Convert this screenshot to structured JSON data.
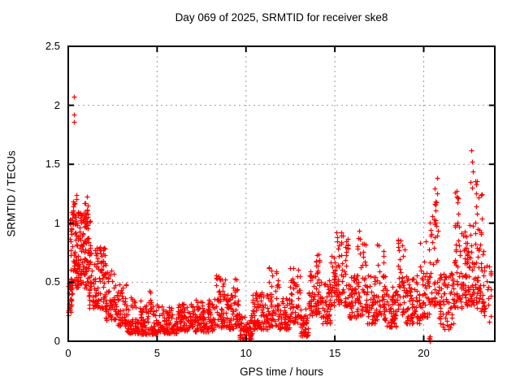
{
  "chart_data": {
    "type": "scatter",
    "title": "Day 069 of 2025, SRMTID for receiver ske8",
    "xlabel": "GPS time / hours",
    "ylabel": "SRMTID / TECUs",
    "xlim": [
      0,
      24
    ],
    "ylim": [
      0,
      2.5
    ],
    "xticks": [
      0,
      5,
      10,
      15,
      20
    ],
    "yticks": [
      0,
      0.5,
      1,
      1.5,
      2,
      2.5
    ],
    "grid": true,
    "legend": "none",
    "marker": "plus",
    "marker_color": "#ff0000",
    "grid_color": "#9a9a9a",
    "border_color": "#000000",
    "point_clusters": [
      [
        0.0,
        0.18,
        25,
        0.18,
        0.55,
        1.0
      ],
      [
        0.05,
        0.4,
        40,
        0.4,
        1.05,
        1.2
      ],
      [
        0.15,
        0.5,
        12,
        1.05,
        1.27,
        1.0
      ],
      [
        0.3,
        1.25,
        150,
        0.45,
        1.1,
        1.25
      ],
      [
        0.85,
        1.2,
        14,
        1.0,
        1.25,
        1.0
      ],
      [
        1.15,
        1.65,
        55,
        0.28,
        0.8,
        1.4
      ],
      [
        1.6,
        2.15,
        50,
        0.28,
        0.8,
        1.6
      ],
      [
        1.82,
        1.98,
        8,
        0.6,
        0.8,
        1.0
      ],
      [
        2.1,
        2.65,
        50,
        0.18,
        0.6,
        1.5
      ],
      [
        2.65,
        3.25,
        50,
        0.13,
        0.5,
        1.7
      ],
      [
        3.25,
        4.1,
        70,
        0.07,
        0.38,
        1.9
      ],
      [
        4.1,
        5.05,
        90,
        0.06,
        0.32,
        1.9
      ],
      [
        4.5,
        4.72,
        8,
        0.25,
        0.45,
        1.0
      ],
      [
        5.05,
        6.1,
        90,
        0.07,
        0.3,
        1.7
      ],
      [
        6.1,
        7.1,
        90,
        0.09,
        0.33,
        1.6
      ],
      [
        7.1,
        8.25,
        105,
        0.08,
        0.36,
        1.6
      ],
      [
        8.25,
        8.85,
        55,
        0.12,
        0.56,
        1.5
      ],
      [
        8.85,
        9.3,
        45,
        0.1,
        0.4,
        1.5
      ],
      [
        9.3,
        9.62,
        28,
        0.12,
        0.58,
        1.3
      ],
      [
        9.62,
        10.35,
        65,
        0.02,
        0.22,
        1.4
      ],
      [
        10.35,
        11.2,
        80,
        0.1,
        0.42,
        1.6
      ],
      [
        11.2,
        11.85,
        55,
        0.13,
        0.64,
        1.5
      ],
      [
        11.85,
        12.45,
        50,
        0.1,
        0.37,
        1.5
      ],
      [
        12.45,
        13.05,
        52,
        0.16,
        0.63,
        1.4
      ],
      [
        13.05,
        13.5,
        42,
        0.04,
        0.28,
        1.3
      ],
      [
        13.5,
        14.15,
        58,
        0.22,
        0.62,
        1.3
      ],
      [
        13.92,
        14.15,
        10,
        0.6,
        0.81,
        1.0
      ],
      [
        14.15,
        14.75,
        52,
        0.15,
        0.52,
        1.5
      ],
      [
        14.75,
        15.05,
        28,
        0.28,
        0.75,
        1.2
      ],
      [
        15.05,
        15.75,
        70,
        0.3,
        0.93,
        1.4
      ],
      [
        15.75,
        16.25,
        45,
        0.2,
        0.56,
        1.5
      ],
      [
        16.25,
        16.75,
        48,
        0.22,
        0.95,
        1.6
      ],
      [
        16.75,
        17.35,
        52,
        0.15,
        0.56,
        1.5
      ],
      [
        17.35,
        17.85,
        45,
        0.18,
        0.82,
        1.8
      ],
      [
        17.85,
        18.55,
        62,
        0.12,
        0.46,
        1.5
      ],
      [
        18.55,
        18.95,
        38,
        0.22,
        0.92,
        1.5
      ],
      [
        18.95,
        19.75,
        68,
        0.15,
        0.56,
        1.5
      ],
      [
        19.75,
        20.35,
        52,
        0.2,
        0.86,
        1.7
      ],
      [
        20.35,
        20.85,
        40,
        0.3,
        1.05,
        1.6
      ],
      [
        20.5,
        20.8,
        12,
        0.98,
        1.47,
        1.0
      ],
      [
        20.85,
        21.65,
        65,
        0.1,
        0.6,
        1.5
      ],
      [
        21.65,
        22.15,
        45,
        0.28,
        1.05,
        1.4
      ],
      [
        21.75,
        21.98,
        9,
        0.95,
        1.28,
        1.0
      ],
      [
        22.15,
        22.95,
        85,
        0.3,
        1.02,
        1.4
      ],
      [
        22.9,
        23.3,
        14,
        0.9,
        1.38,
        1.0
      ],
      [
        22.95,
        23.45,
        45,
        0.25,
        0.85,
        1.5
      ],
      [
        23.35,
        23.8,
        20,
        0.15,
        0.7,
        1.4
      ]
    ],
    "outlier_points": [
      [
        0.3,
        2.07
      ],
      [
        0.32,
        1.92
      ],
      [
        0.33,
        1.86
      ],
      [
        20.3,
        0.03
      ],
      [
        20.32,
        0.02
      ],
      [
        20.35,
        0.04
      ],
      [
        20.33,
        0.0
      ],
      [
        22.67,
        1.62
      ],
      [
        22.72,
        1.52
      ],
      [
        22.75,
        1.44
      ],
      [
        22.62,
        1.35
      ],
      [
        22.7,
        1.3
      ],
      [
        23.0,
        1.36
      ],
      [
        23.1,
        1.22
      ]
    ]
  }
}
